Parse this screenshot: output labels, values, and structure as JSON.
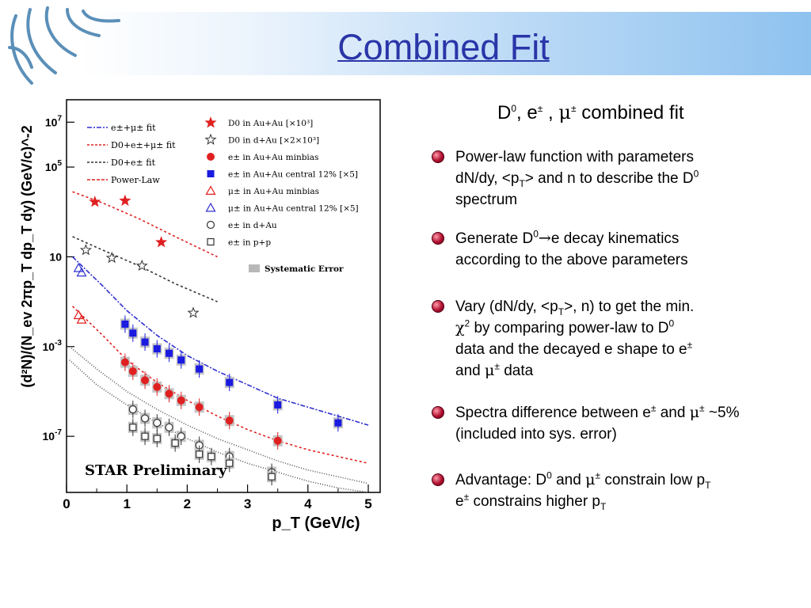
{
  "slide": {
    "title": "Combined Fit",
    "subtitle_parts": [
      "D",
      "0",
      ", e",
      "±",
      " , ",
      "μ",
      "±",
      " combined fit"
    ]
  },
  "bullets": [
    {
      "lines": [
        "Power-law function with parameters",
        [
          "dN/dy, <p",
          "T",
          "> and n to describe the D",
          "0"
        ],
        "spectrum"
      ]
    },
    {
      "lines": [
        [
          "Generate D",
          "0",
          "→",
          "e decay kinematics"
        ],
        "according to the above parameters"
      ]
    },
    {
      "lines": [
        [
          "Vary (dN/dy, <p",
          "T",
          ">, n) to get the min."
        ],
        [
          "χ",
          "2",
          " by comparing power-law to D",
          "0"
        ],
        [
          "data and the decayed e shape to e",
          "±"
        ],
        [
          "and ",
          "μ",
          "±",
          " data"
        ]
      ]
    },
    {
      "lines": [
        [
          "Spectra difference between e",
          "±",
          " and ",
          "μ",
          "±",
          " ~5%"
        ],
        "(included into sys. error)"
      ]
    },
    {
      "lines": [
        [
          "Advantage: D",
          "0",
          " and ",
          "μ",
          "±",
          " constrain low p",
          "T"
        ],
        [
          "e",
          "±",
          " constrains higher p",
          "T"
        ]
      ]
    }
  ],
  "chart_data": {
    "type": "scatter",
    "title": "",
    "xlabel": "p_T (GeV/c)",
    "ylabel": "(d²N)/(N_ev 2πp_T dp_T dy) (GeV/c)^-2",
    "xlim": [
      0,
      5.2
    ],
    "ylim_log10": [
      -9.5,
      8
    ],
    "log_y": true,
    "x_ticks": [
      0,
      1,
      2,
      3,
      4,
      5
    ],
    "y_tick_labels": [
      {
        "exp": 7,
        "label": "10",
        "sup": "7"
      },
      {
        "exp": 5,
        "label": "10",
        "sup": "5"
      },
      {
        "exp": 1,
        "label": "10",
        "sup": ""
      },
      {
        "exp": -3,
        "label": "10",
        "sup": "-3"
      },
      {
        "exp": -7,
        "label": "10",
        "sup": "-7"
      }
    ],
    "annotation": "STAR Preliminary",
    "systematic_label": "Systematic Error",
    "legend_lines": [
      {
        "text": "e±+μ± fit",
        "color": "#3030d0",
        "dash": "6,2,2,2"
      },
      {
        "text": "D0+e±+μ± fit",
        "color": "#e02020",
        "dash": "3,2"
      },
      {
        "text": "D0+e± fit",
        "color": "#333333",
        "dash": "3,2"
      },
      {
        "text": "Power-Law",
        "color": "#e02020",
        "dash": "4,2"
      }
    ],
    "legend_markers": [
      {
        "text": "D0 in Au+Au [×10³]",
        "marker": "star-filled",
        "color": "#e02020"
      },
      {
        "text": "D0 in d+Au [×2×10³]",
        "marker": "star-open",
        "color": "#333333"
      },
      {
        "text": "e± in Au+Au minbias",
        "marker": "circle-filled",
        "color": "#e02020"
      },
      {
        "text": "e± in Au+Au central 12% [×5]",
        "marker": "square-filled",
        "color": "#1a1ae0"
      },
      {
        "text": "μ± in Au+Au minbias",
        "marker": "triangle-open",
        "color": "#e02020"
      },
      {
        "text": "μ± in Au+Au central 12% [×5]",
        "marker": "triangle-open",
        "color": "#3030d0"
      },
      {
        "text": "e± in d+Au",
        "marker": "circle-open",
        "color": "#333333"
      },
      {
        "text": "e± in p+p",
        "marker": "square-open",
        "color": "#333333"
      }
    ],
    "series": [
      {
        "name": "D0 in Au+Au [×10³]",
        "marker": "star-filled",
        "color": "#e02020",
        "x": [
          0.47,
          0.97,
          1.57
        ],
        "y_log10": [
          3.45,
          3.5,
          1.65
        ]
      },
      {
        "name": "D0 in d+Au [×2×10³]",
        "marker": "star-open",
        "color": "#333333",
        "x": [
          0.32,
          0.75,
          1.25,
          2.1
        ],
        "y_log10": [
          1.3,
          0.95,
          0.6,
          -1.5
        ]
      },
      {
        "name": "μ± in Au+Au central 12% [×5]",
        "marker": "triangle-open",
        "color": "#3030d0",
        "x": [
          0.2,
          0.25
        ],
        "y_log10": [
          0.5,
          0.3
        ]
      },
      {
        "name": "μ± in Au+Au minbias",
        "marker": "triangle-open",
        "color": "#e02020",
        "x": [
          0.2,
          0.25
        ],
        "y_log10": [
          -1.6,
          -1.8
        ]
      },
      {
        "name": "e± in Au+Au central 12% [×5]",
        "marker": "square-filled",
        "color": "#1a1ae0",
        "x": [
          0.97,
          1.1,
          1.3,
          1.5,
          1.7,
          1.9,
          2.2,
          2.7,
          3.5,
          4.5
        ],
        "y_log10": [
          -2.0,
          -2.4,
          -2.8,
          -3.1,
          -3.3,
          -3.6,
          -4.0,
          -4.6,
          -5.6,
          -6.4
        ]
      },
      {
        "name": "e± in Au+Au minbias",
        "marker": "circle-filled",
        "color": "#e02020",
        "x": [
          0.97,
          1.1,
          1.3,
          1.5,
          1.7,
          1.9,
          2.2,
          2.7,
          3.5
        ],
        "y_log10": [
          -3.7,
          -4.1,
          -4.5,
          -4.8,
          -5.1,
          -5.4,
          -5.7,
          -6.3,
          -7.2
        ]
      },
      {
        "name": "e± in d+Au",
        "marker": "circle-open",
        "color": "#333333",
        "x": [
          1.1,
          1.3,
          1.5,
          1.7,
          1.9,
          2.2,
          2.7,
          3.4
        ],
        "y_log10": [
          -5.8,
          -6.2,
          -6.4,
          -6.6,
          -7.0,
          -7.4,
          -7.9,
          -8.6
        ]
      },
      {
        "name": "e± in p+p",
        "marker": "square-open",
        "color": "#333333",
        "x": [
          1.1,
          1.3,
          1.5,
          1.8,
          2.2,
          2.4,
          2.7,
          3.4
        ],
        "y_log10": [
          -6.6,
          -7.0,
          -7.1,
          -7.3,
          -7.8,
          -7.9,
          -8.2,
          -8.8
        ]
      }
    ],
    "fit_curves": [
      {
        "color": "#e02020",
        "dash": "3,3",
        "x": [
          0.1,
          0.6,
          1.2,
          1.8,
          2.5
        ],
        "y_log10": [
          3.9,
          3.4,
          2.7,
          1.9,
          1.0
        ]
      },
      {
        "color": "#333333",
        "dash": "3,3",
        "x": [
          0.1,
          0.6,
          1.2,
          1.8,
          2.5
        ],
        "y_log10": [
          1.9,
          1.3,
          0.6,
          -0.2,
          -1.0
        ]
      },
      {
        "color": "#3030d0",
        "dash": "6,2,2,2",
        "x": [
          0.1,
          0.6,
          1.0,
          1.5,
          2.0,
          2.5,
          3.0,
          3.5,
          4.0,
          4.5,
          5.0
        ],
        "y_log10": [
          1.0,
          -0.3,
          -1.4,
          -2.5,
          -3.4,
          -4.1,
          -4.7,
          -5.3,
          -5.7,
          -6.1,
          -6.5
        ]
      },
      {
        "color": "#e02020",
        "dash": "3,3",
        "x": [
          0.1,
          0.6,
          1.0,
          1.5,
          2.0,
          2.5,
          3.0,
          3.5,
          4.0,
          4.5,
          5.0
        ],
        "y_log10": [
          -1.2,
          -2.5,
          -3.6,
          -4.6,
          -5.4,
          -6.1,
          -6.7,
          -7.2,
          -7.6,
          -7.9,
          -8.2
        ]
      },
      {
        "color": "#555555",
        "dash": "1,2",
        "x": [
          0.05,
          0.5,
          1.0,
          1.5,
          2.0,
          2.5,
          3.0,
          3.5,
          4.0,
          4.5,
          5.0
        ],
        "y_log10": [
          -3.0,
          -4.0,
          -5.0,
          -5.8,
          -6.5,
          -7.1,
          -7.6,
          -8.1,
          -8.5,
          -8.8,
          -9.1
        ]
      },
      {
        "color": "#555555",
        "dash": "1,2",
        "x": [
          0.05,
          0.5,
          1.0,
          1.5,
          2.0,
          2.5,
          3.0,
          3.5,
          4.0,
          4.5,
          5.0
        ],
        "y_log10": [
          -3.6,
          -4.7,
          -5.6,
          -6.4,
          -7.1,
          -7.7,
          -8.2,
          -8.6,
          -9.0,
          -9.3,
          -9.5
        ]
      }
    ]
  }
}
